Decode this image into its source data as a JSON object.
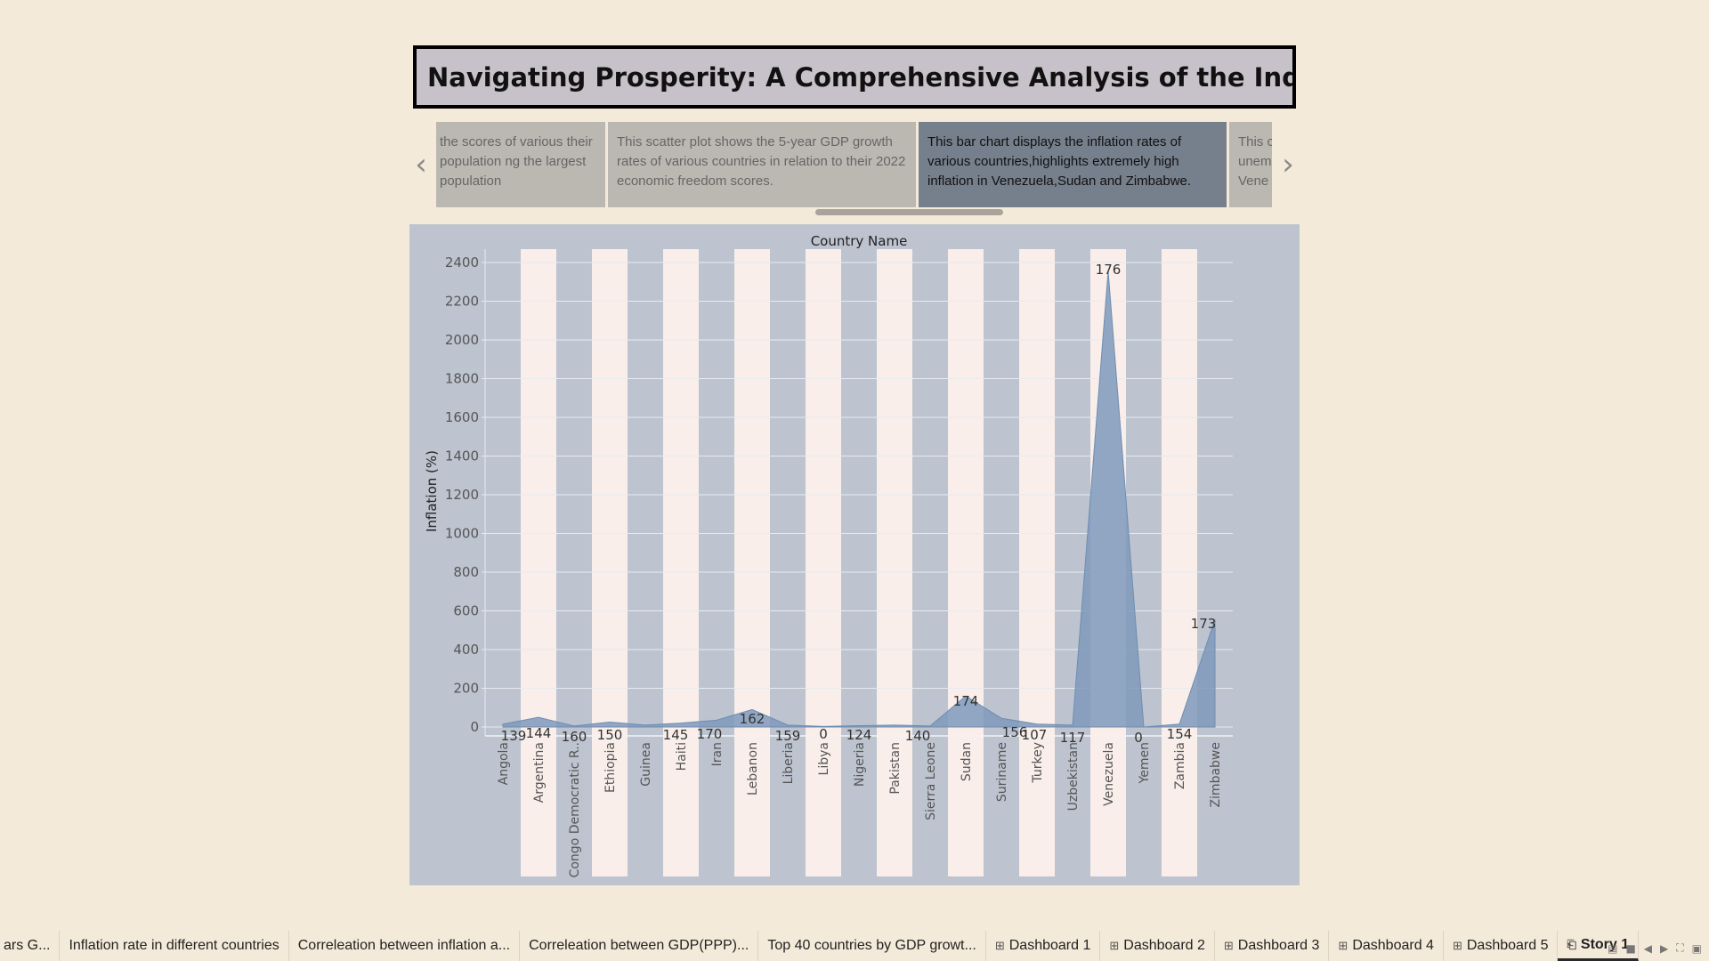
{
  "story": {
    "title": "Navigating Prosperity: A Comprehensive Analysis of the Index of E..",
    "prev_icon": "chevron-left-icon",
    "next_icon": "chevron-right-icon",
    "points": [
      {
        "text": "the scores of various their population ng the largest population",
        "active": false
      },
      {
        "text": "This scatter plot shows the 5-year GDP growth rates of various countries in relation to their 2022 economic freedom scores.",
        "active": false
      },
      {
        "text": "This bar chart displays the inflation rates of various countries,highlights extremely high inflation in Venezuela,Sudan and Zimbabwe.",
        "active": true
      },
      {
        "text": "This c unem Vene",
        "active": false
      }
    ]
  },
  "chart_data": {
    "type": "area",
    "title": "Country Name",
    "xlabel": "",
    "ylabel": "Inflation (%)",
    "ylim": [
      -40,
      2480
    ],
    "yticks": [
      0,
      200,
      400,
      600,
      800,
      1000,
      1200,
      1400,
      1600,
      1800,
      2000,
      2200,
      2400
    ],
    "categories": [
      "Angola",
      "Argentina",
      "Congo Democratic R..",
      "Ethiopia",
      "Guinea",
      "Haiti",
      "Iran",
      "Lebanon",
      "Liberia",
      "Libya",
      "Nigeria",
      "Pakistan",
      "Sierra Leone",
      "Sudan",
      "Suriname",
      "Turkey",
      "Uzbekistan",
      "Venezuela",
      "Yemen",
      "Zambia",
      "Zimbabwe"
    ],
    "series": [
      {
        "values": [
          15,
          50,
          5,
          25,
          10,
          20,
          35,
          90,
          10,
          3,
          7,
          10,
          5,
          160,
          45,
          15,
          10,
          2355,
          0,
          15,
          555
        ]
      }
    ],
    "data_labels": [
      139,
      144,
      160,
      150,
      145,
      170,
      162,
      159,
      0,
      124,
      140,
      174,
      156,
      107,
      117,
      176,
      0,
      154,
      173
    ],
    "label_categories": [
      "Angola",
      "Argentina",
      "Congo Democratic R..",
      "Ethiopia",
      "Haiti",
      "Iran",
      "Lebanon",
      "Liberia",
      "Libya",
      "Nigeria",
      "Sierra Leone",
      "Sudan",
      "Suriname",
      "Turkey",
      "Uzbekistan",
      "Venezuela",
      "Yemen",
      "Zambia",
      "Zimbabwe"
    ],
    "grid": true,
    "colors": {
      "area": "#7f99bb",
      "band": "#f9eeea",
      "panel": "#bdc4cf",
      "grid": "#e8ebf0"
    }
  },
  "tabs": [
    {
      "label": "ars G...",
      "icon": "",
      "active": false
    },
    {
      "label": "Inflation rate in different countries",
      "icon": "",
      "active": false
    },
    {
      "label": "Correleation between inflation a...",
      "icon": "",
      "active": false
    },
    {
      "label": "Correleation between GDP(PPP)...",
      "icon": "",
      "active": false
    },
    {
      "label": "Top 40 countries by GDP growt...",
      "icon": "",
      "active": false
    },
    {
      "label": "Dashboard 1",
      "icon": "grid-icon",
      "active": false
    },
    {
      "label": "Dashboard 2",
      "icon": "grid-icon",
      "active": false
    },
    {
      "label": "Dashboard 3",
      "icon": "grid-icon",
      "active": false
    },
    {
      "label": "Dashboard 4",
      "icon": "grid-icon",
      "active": false
    },
    {
      "label": "Dashboard 5",
      "icon": "grid-icon",
      "active": false
    },
    {
      "label": "Story 1",
      "icon": "book-icon",
      "active": true
    }
  ]
}
